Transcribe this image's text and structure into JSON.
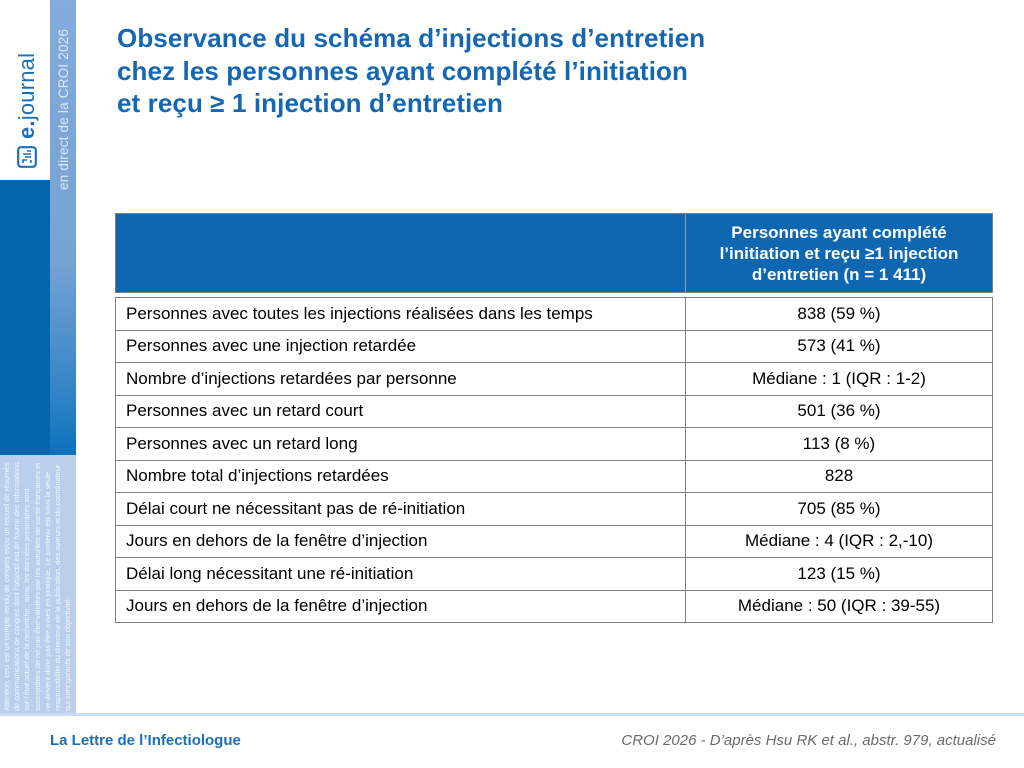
{
  "colors": {
    "title_blue": "#1467b0",
    "table_header_bg": "#0f67b2",
    "table_border": "#7f7f7f",
    "sidebar_dark_blue": "#0564ab",
    "sidebar_strip_blue_top": "#83abdb",
    "sidebar_strip_blue_bottom": "#0b71bd",
    "disclaimer_bg": "#b9cfec",
    "footer_line": "#ccddf3",
    "footer_left_text": "#1b6fb9",
    "footer_right_text": "#6b6b6b",
    "logo_blue": "#1d70b7"
  },
  "sidebar": {
    "logo": {
      "bold_part": "e.",
      "rest_part": "journal",
      "icon": "document-chart-icon"
    },
    "banner": "en direct de la CROI 2026",
    "disclaimer": "Attention, ceci est un compte-rendu de congrès et/ou un recueil de résumés de communications de congrès dont l’objectif est de fournir des informations sur l’état actuel de la recherche ; ainsi, les données présentées sont susceptibles de ne pas être validées par les autorités de santé françaises et ne doivent donc pas être mises en pratique. Le contenu est sous la seule responsabilité du directeur de la publication, des auteurs et du coordinateur qui sont garants de son objectivité."
  },
  "title": {
    "line1": "Observance du schéma d’injections d’entretien",
    "line2": "chez les personnes ayant complété l’initiation",
    "line3": "et reçu ≥ 1 injection d’entretien"
  },
  "table": {
    "header_col1": "",
    "header_col2": "Personnes ayant complété l’initiation et reçu ≥1 injection d’entretien (n = 1 411)",
    "rows": [
      {
        "label": "Personnes avec toutes les injections réalisées dans les temps",
        "value": "838 (59 %)"
      },
      {
        "label": "Personnes avec une injection retardée",
        "value": "573 (41 %)"
      },
      {
        "label": "Nombre d’injections retardées par personne",
        "value": "Médiane : 1 (IQR : 1-2)"
      },
      {
        "label": "Personnes avec un retard court",
        "value": "501 (36 %)"
      },
      {
        "label": "Personnes avec un retard long",
        "value": "113 (8 %)"
      },
      {
        "label": "Nombre total d’injections retardées",
        "value": "828"
      },
      {
        "label": "Délai court ne nécessitant pas de ré-initiation",
        "value": "705 (85 %)"
      },
      {
        "label": "Jours en dehors de la fenêtre d’injection",
        "value": "Médiane : 4 (IQR : 2,-10)"
      },
      {
        "label": "Délai long nécessitant une ré-initiation",
        "value": "123 (15 %)"
      },
      {
        "label": "Jours en dehors de la fenêtre d’injection",
        "value": "Médiane : 50 (IQR : 39-55)"
      }
    ]
  },
  "footer": {
    "left": "La Lettre de l’Infectiologue",
    "right": "CROI 2026 - D’après Hsu RK et al., abstr. 979, actualisé"
  }
}
